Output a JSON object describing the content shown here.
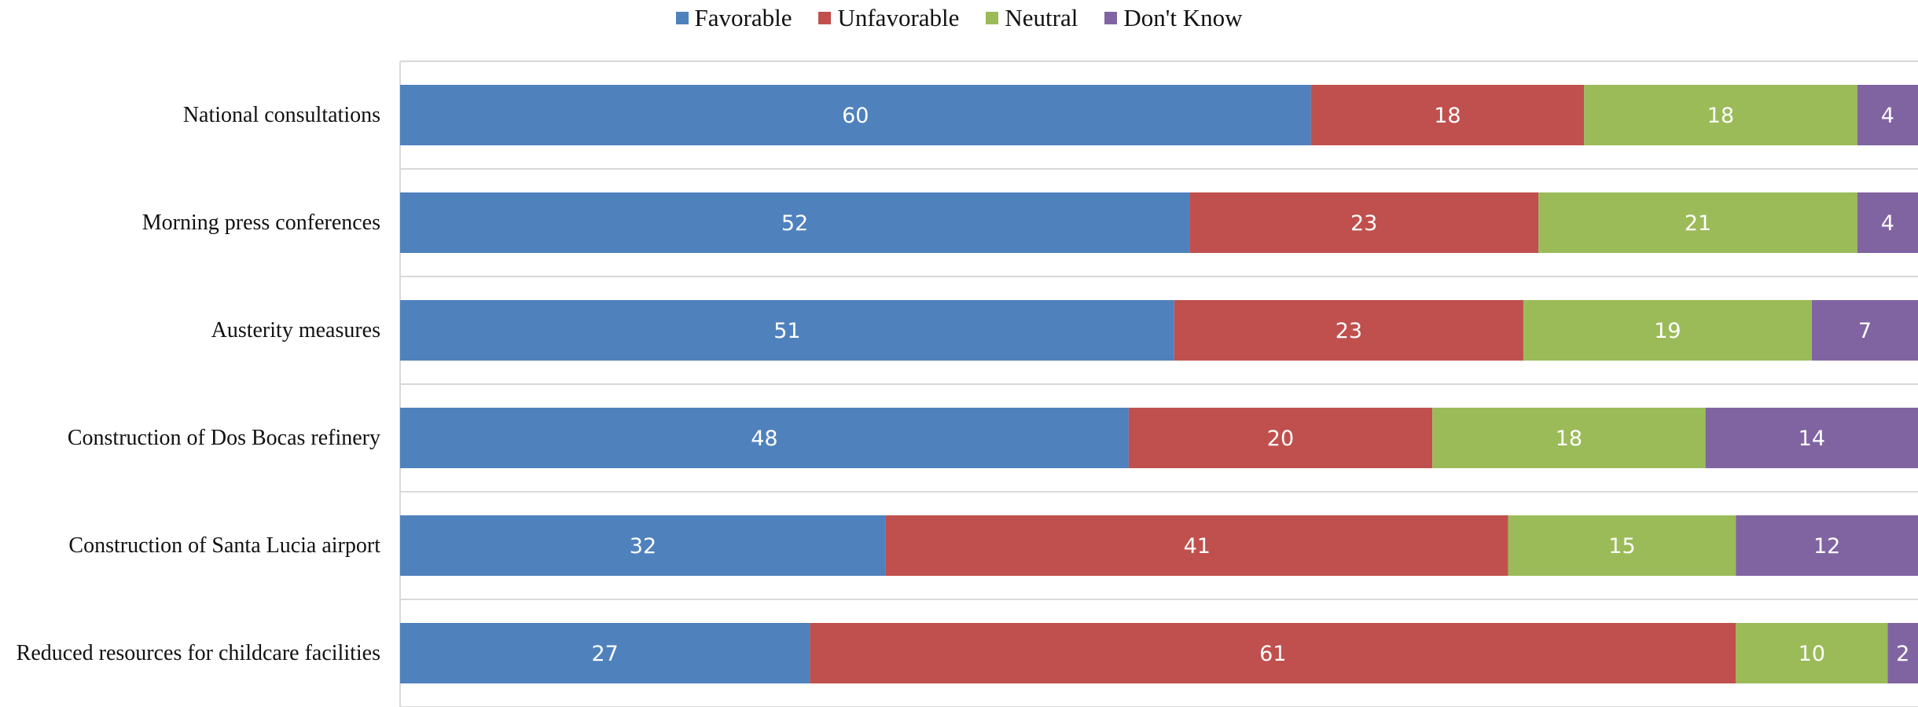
{
  "chart_data": {
    "type": "bar",
    "orientation": "horizontal",
    "stacked": true,
    "categories": [
      "National consultations",
      "Morning press conferences",
      "Austerity measures",
      "Construction of Dos Bocas refinery",
      "Construction of Santa Lucia airport",
      "Reduced resources for childcare facilities"
    ],
    "series": [
      {
        "name": "Favorable",
        "color": "#4F81BD",
        "values": [
          60,
          52,
          51,
          48,
          32,
          27
        ]
      },
      {
        "name": "Unfavorable",
        "color": "#C0504D",
        "values": [
          18,
          23,
          23,
          20,
          41,
          61
        ]
      },
      {
        "name": "Neutral",
        "color": "#9BBB59",
        "values": [
          18,
          21,
          19,
          18,
          15,
          10
        ]
      },
      {
        "name": "Don't Know",
        "color": "#8064A2",
        "values": [
          4,
          4,
          7,
          14,
          12,
          2
        ]
      }
    ],
    "xlim": [
      0,
      100
    ],
    "grid": true,
    "legend_position": "top",
    "data_labels": true
  }
}
